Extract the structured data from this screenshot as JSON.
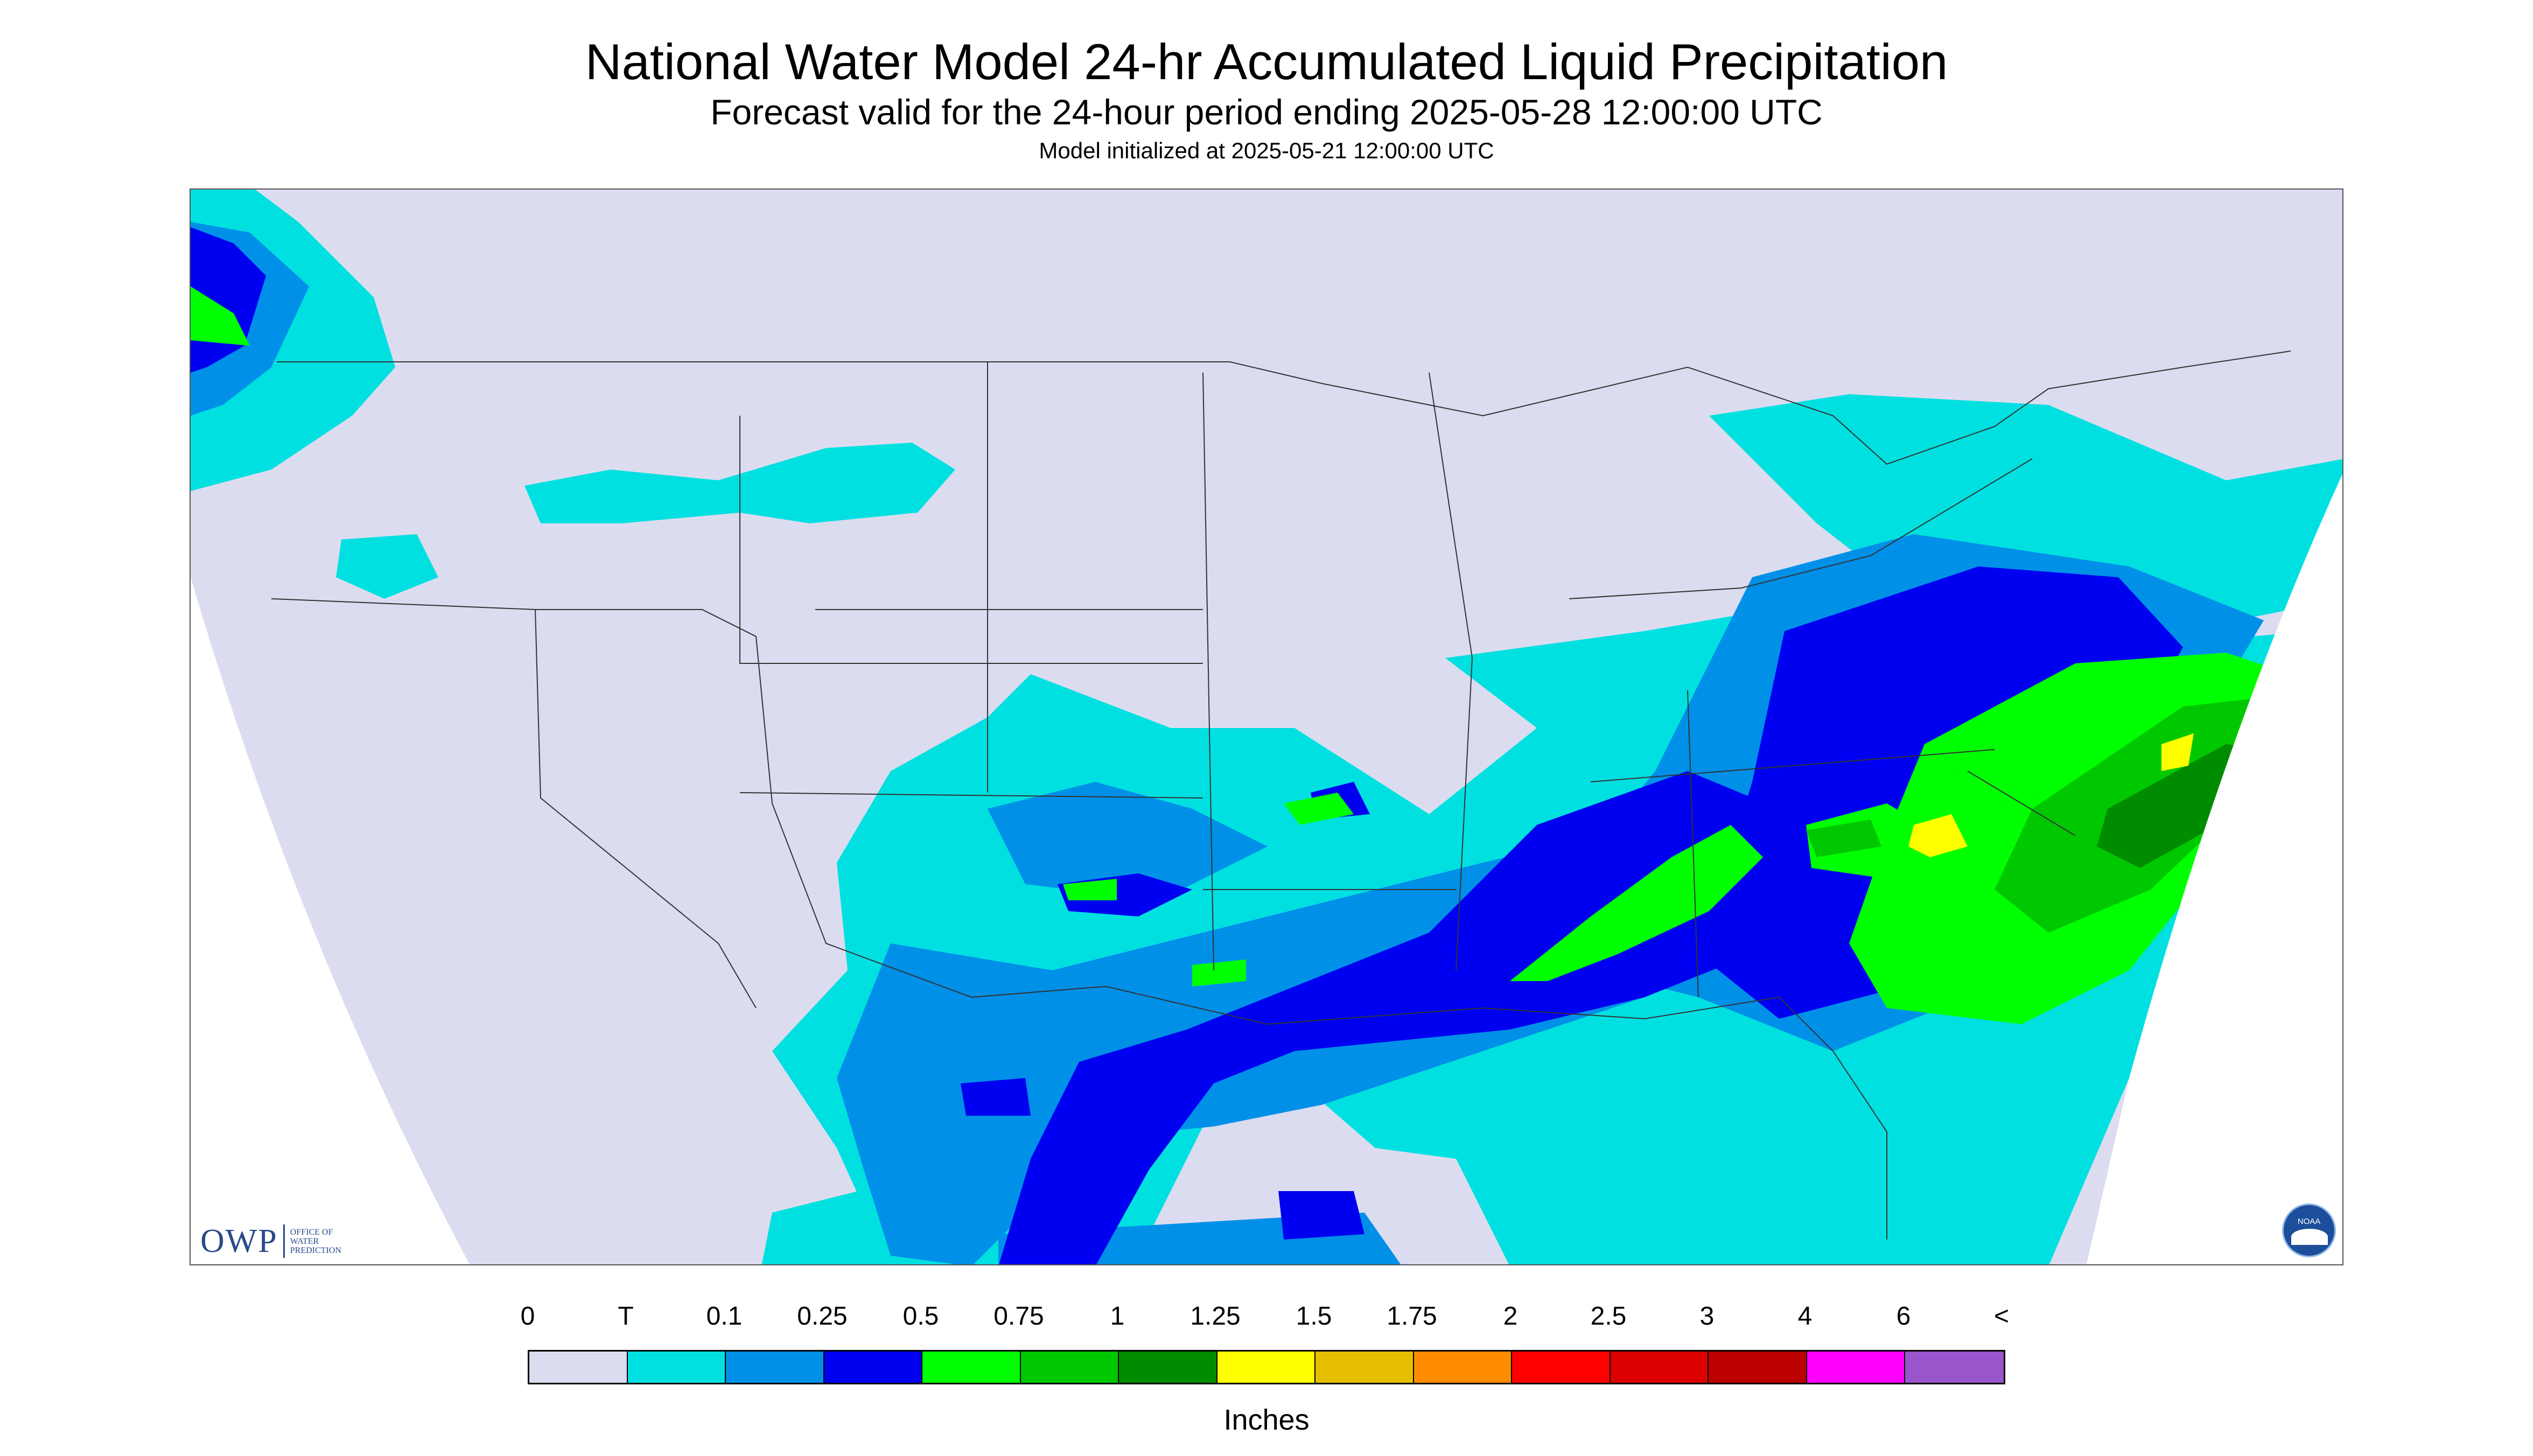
{
  "title": "National Water Model 24-hr Accumulated Liquid Precipitation",
  "subtitle": "Forecast valid for the 24-hour period ending 2025-05-28 12:00:00 UTC",
  "init_line": "Model initialized at 2025-05-21 12:00:00 UTC",
  "logos": {
    "owp_mark": "OWP",
    "owp_text": [
      "OFFICE OF",
      "WATER",
      "PREDICTION"
    ],
    "noaa_text": "NOAA"
  },
  "legend": {
    "labels": [
      "0",
      "T",
      "0.1",
      "0.25",
      "0.5",
      "0.75",
      "1",
      "1.25",
      "1.5",
      "1.75",
      "2",
      "2.5",
      "3",
      "4",
      "6",
      "<"
    ],
    "colors": [
      "#dcdcf0",
      "#00e0e0",
      "#0090e8",
      "#0000f0",
      "#00ff00",
      "#00c800",
      "#008c00",
      "#ffff00",
      "#e6c000",
      "#ff8c00",
      "#ff0000",
      "#dc0000",
      "#bc0000",
      "#ff00ff",
      "#9955cc"
    ],
    "units": "Inches"
  },
  "map_colors": {
    "background": "#dcdcf0",
    "border_lines": "#333333",
    "outside": "#ffffff"
  }
}
